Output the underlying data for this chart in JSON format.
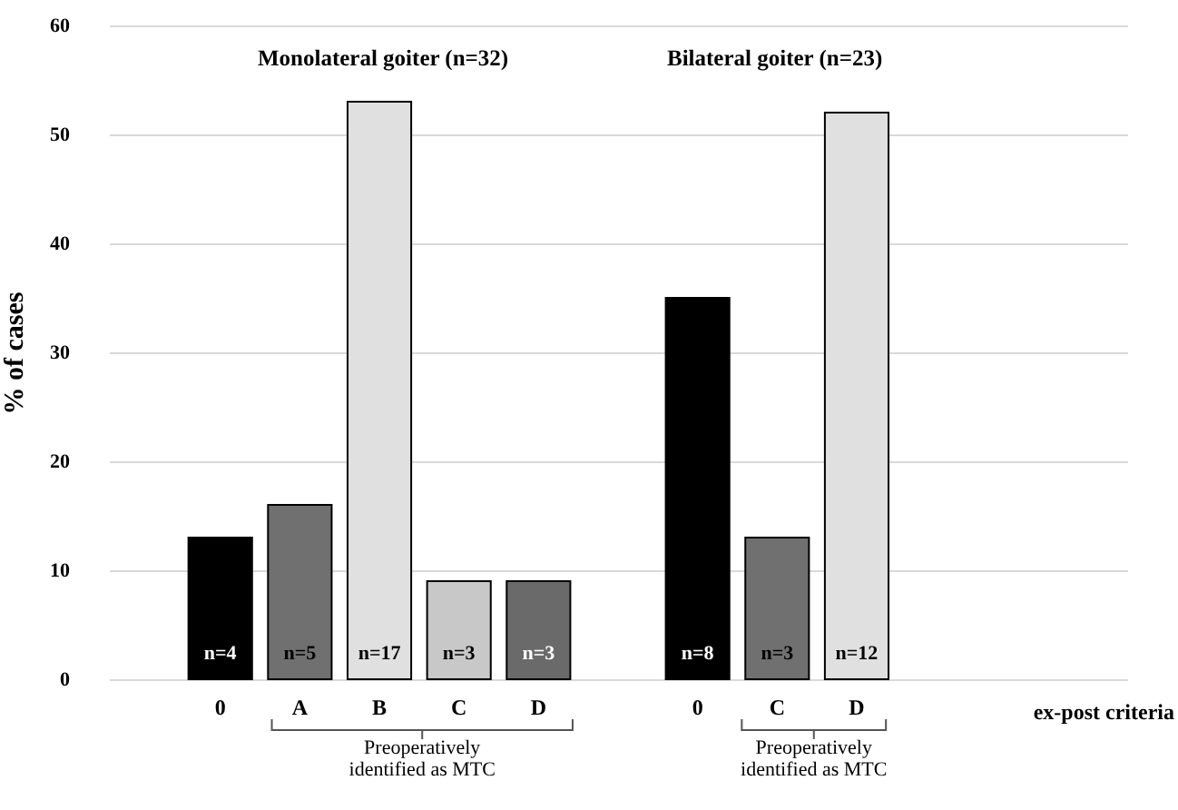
{
  "chart_data": {
    "type": "bar",
    "ylabel": "% of cases",
    "xlabel": "ex-post criteria",
    "categories": [
      null,
      "0",
      "A",
      "B",
      "C",
      "D",
      null,
      "0",
      "C",
      "D",
      null,
      null,
      null
    ],
    "values": [
      null,
      13,
      16,
      53,
      9,
      9,
      null,
      35,
      13,
      52,
      null,
      null,
      null
    ],
    "colors": [
      null,
      "#000000",
      "#707070",
      "#e0e0e0",
      "#c8c8c8",
      "#6a6a6a",
      null,
      "#000000",
      "#707070",
      "#e0e0e0",
      null,
      null,
      null
    ],
    "ylim": [
      0,
      60
    ],
    "yticks": [
      0,
      10,
      20,
      30,
      40,
      50,
      60
    ],
    "grid": "y",
    "annotations": [
      "Monolateral goiter (n=32)",
      "Bilateral goiter (n=23)",
      "Preoperatively identified as MTC",
      "Preoperatively identified as MTC",
      "n=4",
      "n=5",
      "n=17",
      "n=3",
      "n=3",
      "n=8",
      "n=3",
      "n=12"
    ]
  }
}
